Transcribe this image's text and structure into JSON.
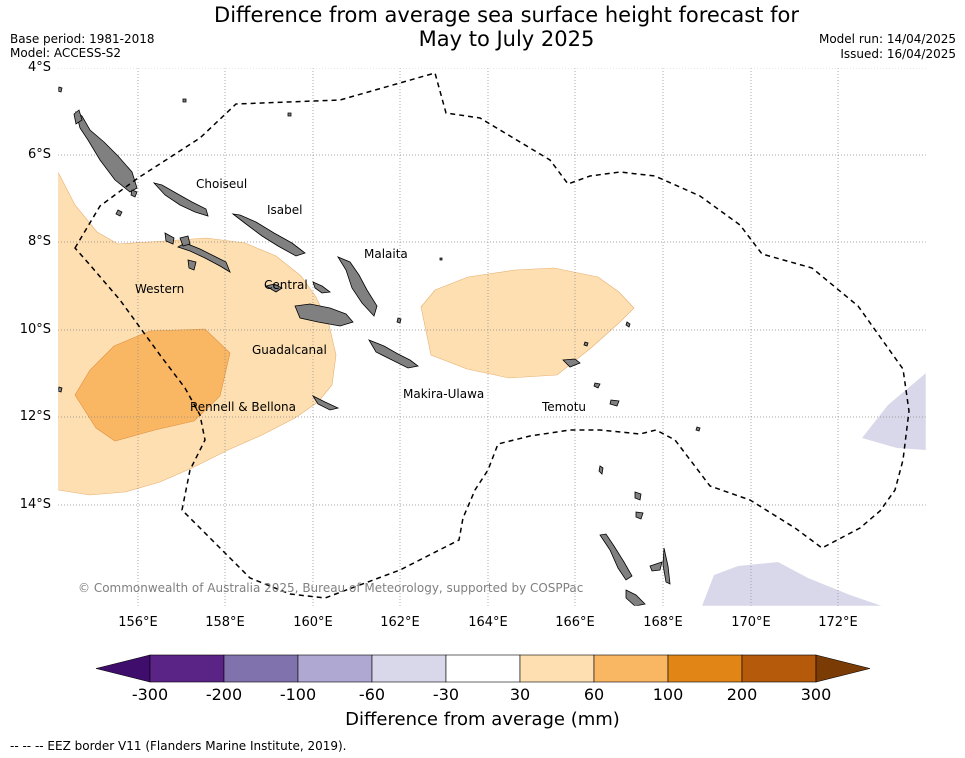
{
  "header": {
    "title_line1": "Difference from average sea surface height forecast for",
    "title_line2": "May to July 2025",
    "base_period": "Base period: 1981-2018",
    "model": "Model: ACCESS-S2",
    "model_run": "Model run: 14/04/2025",
    "issued": "Issued: 16/04/2025"
  },
  "map": {
    "lat_ticks": [
      "4°S",
      "6°S",
      "8°S",
      "10°S",
      "12°S",
      "14°S"
    ],
    "lon_ticks": [
      "156°E",
      "158°E",
      "160°E",
      "162°E",
      "164°E",
      "166°E",
      "168°E",
      "170°E",
      "172°E"
    ],
    "provinces": [
      "Choiseul",
      "Isabel",
      "Malaita",
      "Western",
      "Central",
      "Guadalcanal",
      "Rennell & Bellona",
      "Makira-Ulawa",
      "Temotu"
    ],
    "copyright": "© Commonwealth of Australia 2025, Bureau of Meteorology, supported by COSPPac",
    "land_color": "#808080",
    "grid": "dotted",
    "eez_border": "dashed"
  },
  "colorbar": {
    "boundaries": [
      "-300",
      "-200",
      "-100",
      "-60",
      "-30",
      "30",
      "60",
      "100",
      "200",
      "300"
    ],
    "colors": [
      "#3f0d6b",
      "#5a2386",
      "#8072ad",
      "#aea8d2",
      "#d8d8ea",
      "#ffffff",
      "#fddfb2",
      "#fab763",
      "#e08516",
      "#b5590a",
      "#7a3b05"
    ],
    "label": "Difference from average (mm)"
  },
  "footer": {
    "eez_legend": "--  --  -- EEZ border V11 (Flanders Marine Institute, 2019)."
  }
}
